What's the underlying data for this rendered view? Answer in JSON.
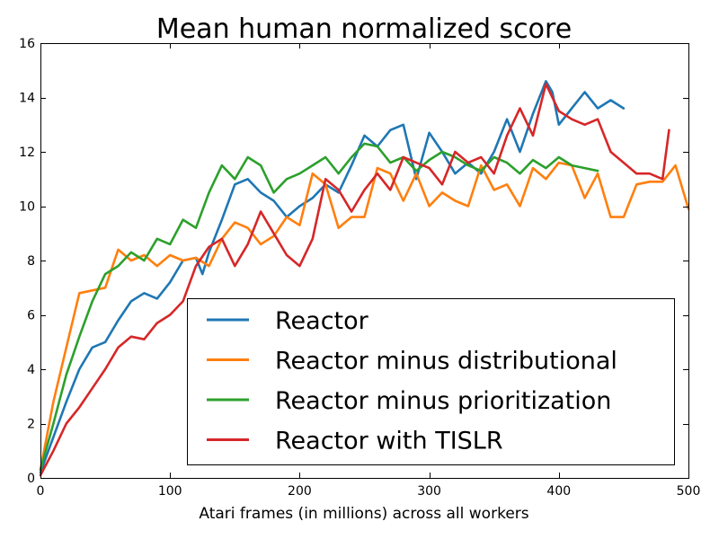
{
  "chart_data": {
    "type": "line",
    "title": "Mean human normalized score",
    "xlabel": "Atari frames (in millions) across all workers",
    "ylabel": "",
    "xlim": [
      0,
      500
    ],
    "ylim": [
      0,
      16
    ],
    "xticks": [
      0,
      100,
      200,
      300,
      400,
      500
    ],
    "xtick_labels": [
      "0",
      "100",
      "200",
      "300",
      "400",
      "500"
    ],
    "yticks": [
      0,
      2,
      4,
      6,
      8,
      10,
      12,
      14,
      16
    ],
    "ytick_labels": [
      "0",
      "2",
      "4",
      "6",
      "8",
      "10",
      "12",
      "14",
      "16"
    ],
    "grid": false,
    "legend_position": "lower-right",
    "series": [
      {
        "name": "Reactor",
        "color": "#1f77b4",
        "x": [
          0,
          10,
          20,
          30,
          40,
          50,
          60,
          70,
          80,
          90,
          100,
          110,
          120,
          125,
          130,
          140,
          150,
          160,
          170,
          180,
          190,
          200,
          210,
          220,
          230,
          240,
          250,
          260,
          270,
          280,
          290,
          300,
          310,
          320,
          330,
          340,
          350,
          360,
          370,
          380,
          390,
          395,
          400,
          410,
          420,
          430,
          440,
          450
        ],
        "y": [
          0.2,
          1.5,
          2.8,
          4.0,
          4.8,
          5.0,
          5.8,
          6.5,
          6.8,
          6.6,
          7.2,
          8.0,
          8.1,
          7.5,
          8.3,
          9.5,
          10.8,
          11.0,
          10.5,
          10.2,
          9.6,
          10.0,
          10.3,
          10.8,
          10.5,
          11.5,
          12.6,
          12.2,
          12.8,
          13.0,
          11.0,
          12.7,
          12.0,
          11.2,
          11.6,
          11.2,
          12.0,
          13.2,
          12.0,
          13.4,
          14.6,
          14.2,
          13.0,
          13.6,
          14.2,
          13.6,
          13.9,
          13.6
        ]
      },
      {
        "name": "Reactor minus distributional",
        "color": "#ff7f0e",
        "x": [
          0,
          10,
          20,
          30,
          40,
          50,
          60,
          70,
          80,
          90,
          100,
          110,
          120,
          130,
          140,
          150,
          160,
          170,
          180,
          190,
          200,
          210,
          220,
          230,
          240,
          250,
          260,
          270,
          280,
          290,
          300,
          310,
          320,
          330,
          340,
          350,
          360,
          370,
          380,
          390,
          400,
          410,
          420,
          430,
          440,
          450,
          460,
          470,
          480,
          490,
          500
        ],
        "y": [
          0.3,
          2.8,
          4.8,
          6.8,
          6.9,
          7.0,
          8.4,
          8.0,
          8.2,
          7.8,
          8.2,
          8.0,
          8.1,
          7.8,
          8.8,
          9.4,
          9.2,
          8.6,
          8.9,
          9.6,
          9.3,
          11.2,
          10.8,
          9.2,
          9.6,
          9.6,
          11.4,
          11.2,
          10.2,
          11.2,
          10.0,
          10.5,
          10.2,
          10.0,
          11.5,
          10.6,
          10.8,
          10.0,
          11.4,
          11.0,
          11.6,
          11.5,
          10.3,
          11.2,
          9.6,
          9.6,
          10.8,
          10.9,
          10.9,
          11.5,
          9.9
        ]
      },
      {
        "name": "Reactor minus prioritization",
        "color": "#2ca02c",
        "x": [
          0,
          10,
          20,
          30,
          40,
          50,
          60,
          70,
          80,
          90,
          100,
          110,
          120,
          130,
          140,
          150,
          160,
          170,
          180,
          190,
          200,
          210,
          220,
          230,
          240,
          250,
          260,
          270,
          280,
          290,
          300,
          310,
          320,
          330,
          340,
          350,
          360,
          370,
          380,
          390,
          400,
          410,
          420,
          430
        ],
        "y": [
          0.3,
          2.0,
          3.8,
          5.2,
          6.5,
          7.5,
          7.8,
          8.3,
          8.0,
          8.8,
          8.6,
          9.5,
          9.2,
          10.5,
          11.5,
          11.0,
          11.8,
          11.5,
          10.5,
          11.0,
          11.2,
          11.5,
          11.8,
          11.2,
          11.8,
          12.3,
          12.2,
          11.6,
          11.8,
          11.3,
          11.7,
          12.0,
          11.8,
          11.5,
          11.3,
          11.8,
          11.6,
          11.2,
          11.7,
          11.4,
          11.8,
          11.5,
          11.4,
          11.3
        ]
      },
      {
        "name": "Reactor with TISLR",
        "color": "#d62728",
        "x": [
          0,
          10,
          20,
          30,
          40,
          50,
          60,
          70,
          80,
          90,
          100,
          110,
          120,
          130,
          140,
          150,
          160,
          170,
          180,
          190,
          200,
          210,
          220,
          230,
          240,
          250,
          260,
          270,
          280,
          290,
          300,
          310,
          320,
          330,
          340,
          350,
          360,
          370,
          380,
          390,
          400,
          410,
          420,
          430,
          440,
          450,
          460,
          470,
          480,
          485
        ],
        "y": [
          0.1,
          1.0,
          2.0,
          2.6,
          3.3,
          4.0,
          4.8,
          5.2,
          5.1,
          5.7,
          6.0,
          6.5,
          7.8,
          8.5,
          8.8,
          7.8,
          8.6,
          9.8,
          9.0,
          8.2,
          7.8,
          8.8,
          11.0,
          10.6,
          9.8,
          10.6,
          11.2,
          10.6,
          11.8,
          11.6,
          11.4,
          10.8,
          12.0,
          11.6,
          11.8,
          11.2,
          12.6,
          13.6,
          12.6,
          14.5,
          13.5,
          13.2,
          13.0,
          13.2,
          12.0,
          11.6,
          11.2,
          11.2,
          11.0,
          12.8
        ]
      }
    ]
  }
}
